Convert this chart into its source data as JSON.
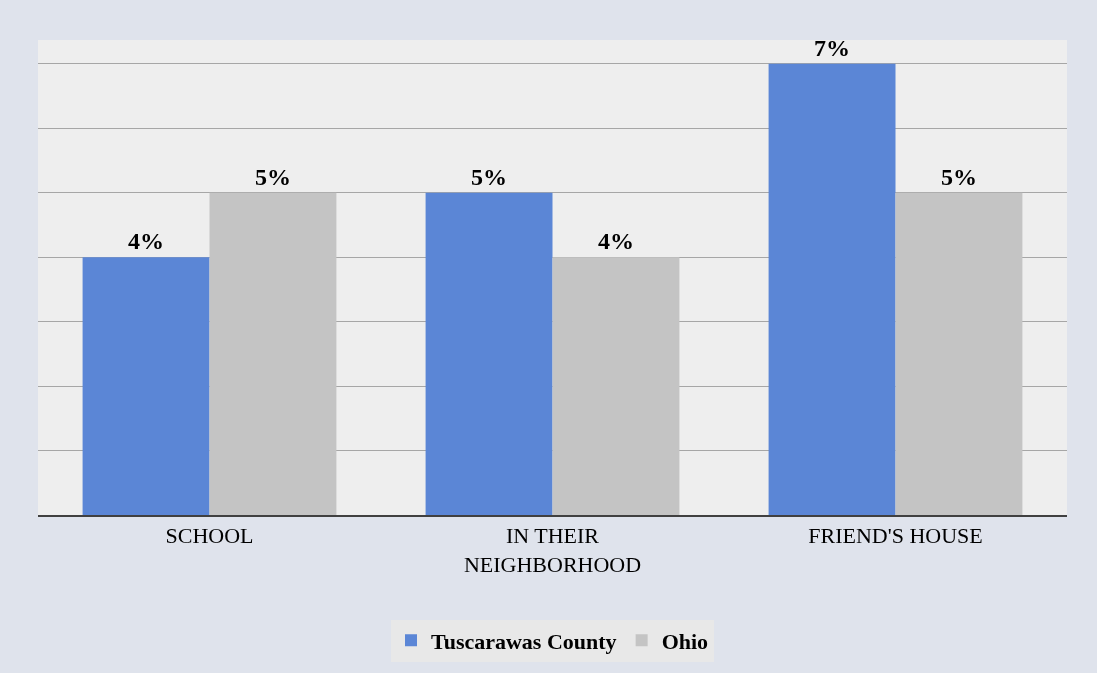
{
  "chart_data": {
    "type": "bar",
    "categories": [
      "SCHOOL",
      "IN THEIR NEIGHBORHOOD",
      "FRIEND'S HOUSE"
    ],
    "series": [
      {
        "name": "Tuscarawas County",
        "color": "#5b86d6",
        "values": [
          4,
          5,
          7
        ],
        "value_labels": [
          "4%",
          "5%",
          "7%"
        ]
      },
      {
        "name": "Ohio",
        "color": "#c4c4c4",
        "values": [
          5,
          4,
          5
        ],
        "value_labels": [
          "5%",
          "4%",
          "5%"
        ]
      }
    ],
    "tick_labels": "x",
    "grid": "y",
    "legend": "bottom"
  }
}
